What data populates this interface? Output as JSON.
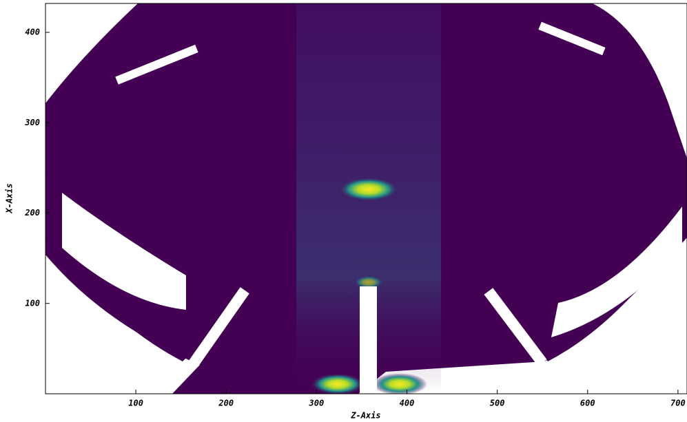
{
  "chart_data": {
    "type": "heatmap",
    "x_label": "Z-Axis",
    "y_label": "X-Axis",
    "xlim": [
      0,
      710
    ],
    "ylim": [
      0,
      432
    ],
    "xticks": [
      100,
      200,
      300,
      400,
      500,
      600,
      700
    ],
    "yticks": [
      100,
      200,
      300,
      400
    ]
  }
}
